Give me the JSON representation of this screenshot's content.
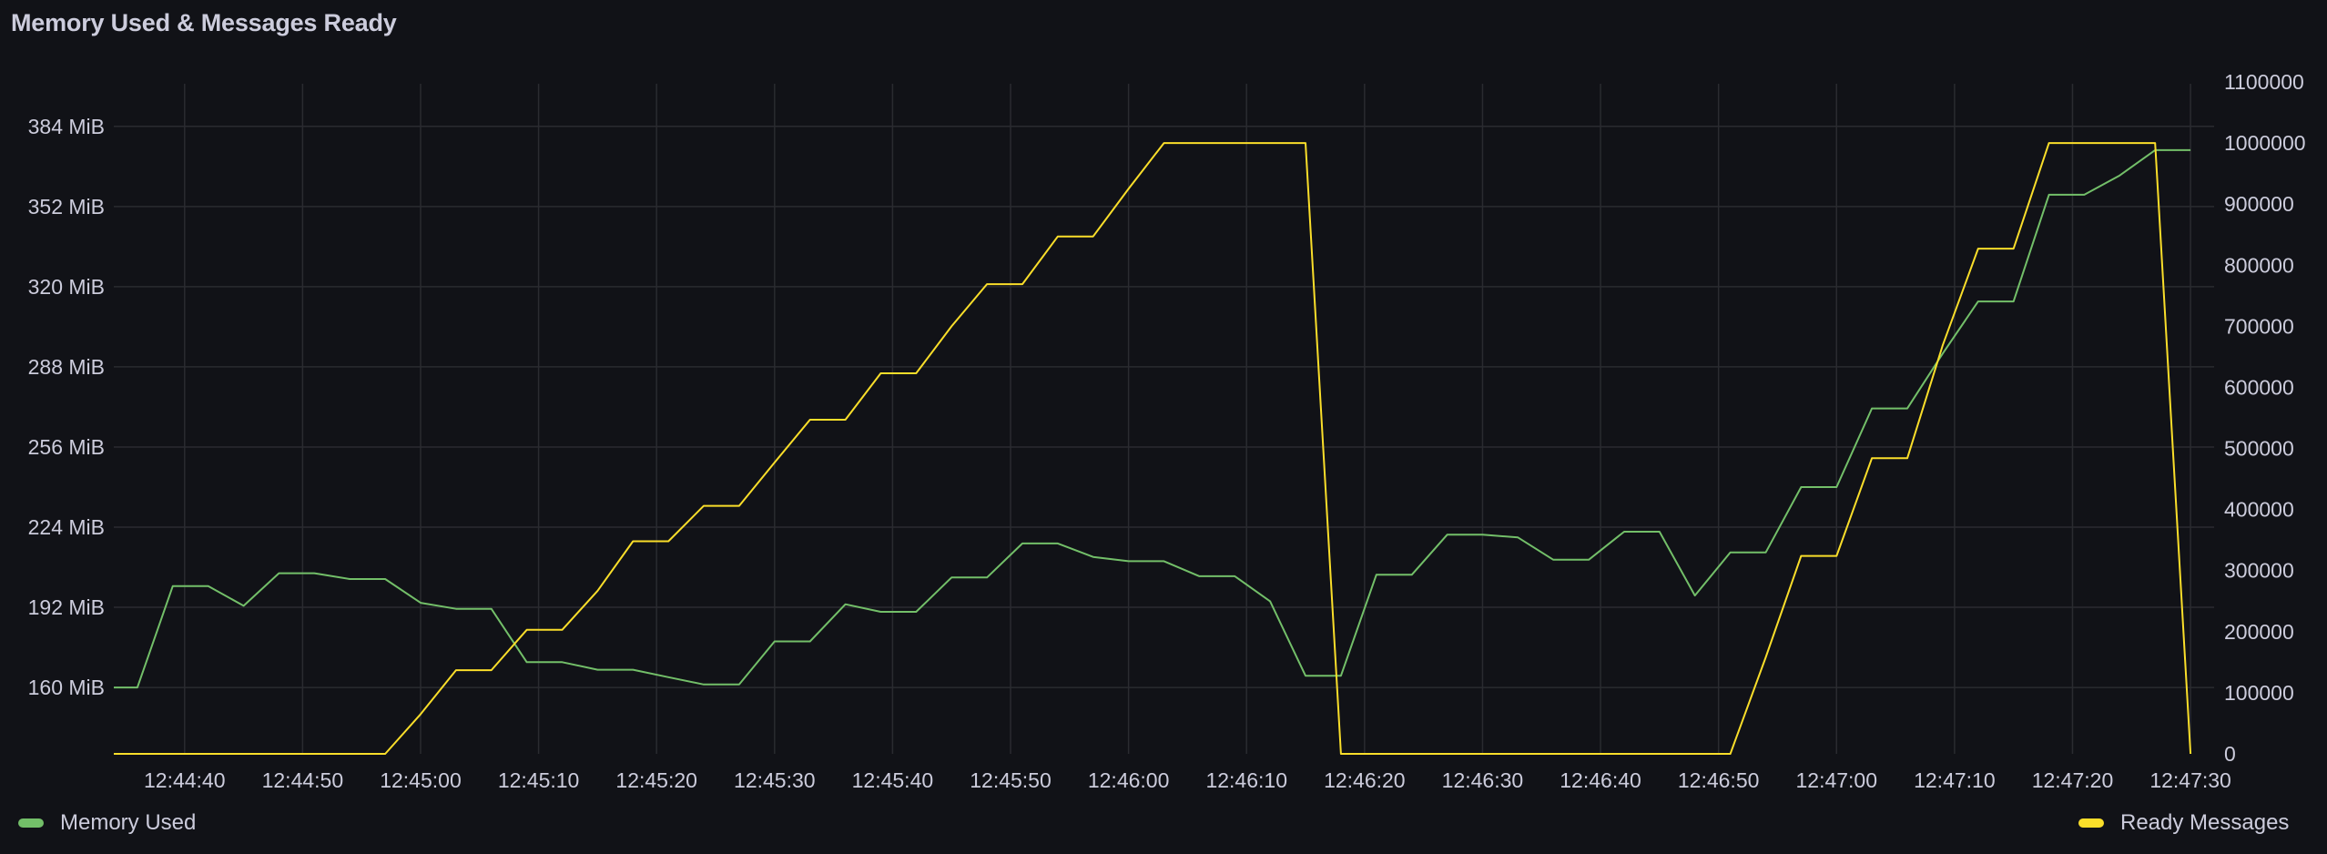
{
  "panel": {
    "title": "Memory Used & Messages Ready"
  },
  "colors": {
    "background": "#111217",
    "grid": "#2a2b30",
    "text": "#ccccdc",
    "memory": "#73BF69",
    "ready": "#FADE2A"
  },
  "legend": {
    "left": {
      "label": "Memory Used",
      "color": "#73BF69"
    },
    "right": {
      "label": "Ready Messages",
      "color": "#FADE2A"
    }
  },
  "chart_data": {
    "type": "line",
    "title": "Memory Used & Messages Ready",
    "grid": true,
    "legend_placement": "bottom",
    "xlim": [
      "12:44:34",
      "12:47:32"
    ],
    "x_ticks": [
      "12:44:40",
      "12:44:50",
      "12:45:00",
      "12:45:10",
      "12:45:20",
      "12:45:30",
      "12:45:40",
      "12:45:50",
      "12:46:00",
      "12:46:10",
      "12:46:20",
      "12:46:30",
      "12:46:40",
      "12:46:50",
      "12:47:00",
      "12:47:10",
      "12:47:20",
      "12:47:30"
    ],
    "y_left": {
      "unit": "MiB",
      "ylim": [
        133.5,
        401
      ],
      "ticks": [
        160,
        192,
        224,
        256,
        288,
        320,
        352,
        384
      ],
      "tick_labels": [
        "160 MiB",
        "192 MiB",
        "224 MiB",
        "256 MiB",
        "288 MiB",
        "320 MiB",
        "352 MiB",
        "384 MiB"
      ]
    },
    "y_right": {
      "ylim": [
        0,
        1097000
      ],
      "ticks": [
        0,
        100000,
        200000,
        300000,
        400000,
        500000,
        600000,
        700000,
        800000,
        900000,
        1000000,
        1100000
      ],
      "tick_labels": [
        "0",
        "100000",
        "200000",
        "300000",
        "400000",
        "500000",
        "600000",
        "700000",
        "800000",
        "900000",
        "1000000",
        "1100000"
      ]
    },
    "x": [
      "12:44:33",
      "12:44:36",
      "12:44:39",
      "12:44:42",
      "12:44:45",
      "12:44:48",
      "12:44:51",
      "12:44:54",
      "12:44:57",
      "12:45:00",
      "12:45:03",
      "12:45:06",
      "12:45:09",
      "12:45:12",
      "12:45:15",
      "12:45:18",
      "12:45:21",
      "12:45:24",
      "12:45:27",
      "12:45:30",
      "12:45:33",
      "12:45:36",
      "12:45:39",
      "12:45:42",
      "12:45:45",
      "12:45:48",
      "12:45:51",
      "12:45:54",
      "12:45:57",
      "12:46:00",
      "12:46:03",
      "12:46:06",
      "12:46:09",
      "12:46:12",
      "12:46:15",
      "12:46:18",
      "12:46:21",
      "12:46:24",
      "12:46:27",
      "12:46:30",
      "12:46:33",
      "12:46:36",
      "12:46:39",
      "12:46:42",
      "12:46:45",
      "12:46:48",
      "12:46:51",
      "12:46:54",
      "12:46:57",
      "12:47:00",
      "12:47:03",
      "12:47:06",
      "12:47:09",
      "12:47:12",
      "12:47:15",
      "12:47:18",
      "12:47:21",
      "12:47:24",
      "12:47:27",
      "12:47:30"
    ],
    "series": [
      {
        "name": "Memory Used",
        "axis": "left",
        "color": "#73BF69",
        "values": [
          160,
          160,
          200.5,
          200.5,
          192.6,
          205.6,
          205.6,
          203.3,
          203.3,
          193.8,
          191.4,
          191.4,
          170.1,
          170.1,
          167.1,
          167.1,
          164.1,
          161.2,
          161.2,
          178.4,
          178.4,
          193.2,
          190.2,
          190.2,
          203.9,
          203.9,
          217.5,
          217.5,
          212.1,
          210.4,
          210.4,
          204.4,
          204.4,
          194.4,
          164.7,
          164.7,
          205,
          205,
          221,
          221,
          219.9,
          211,
          211,
          222.2,
          222.2,
          196.7,
          213.9,
          213.9,
          240,
          240,
          271.4,
          271.4,
          293.3,
          314.1,
          314.1,
          356.7,
          356.7,
          364.4,
          374.5,
          374.5
        ]
      },
      {
        "name": "Ready Messages",
        "axis": "right",
        "color": "#FADE2A",
        "values": [
          0,
          0,
          0,
          0,
          0,
          0,
          0,
          0,
          0,
          65000,
          137000,
          137000,
          203000,
          203000,
          267000,
          348000,
          348000,
          406000,
          406000,
          477000,
          547000,
          547000,
          623000,
          623000,
          700000,
          769000,
          769000,
          847000,
          847000,
          925000,
          1000000,
          1000000,
          1000000,
          1000000,
          1000000,
          0,
          0,
          0,
          0,
          0,
          0,
          0,
          0,
          0,
          0,
          0,
          0,
          158000,
          324000,
          324000,
          484000,
          484000,
          669000,
          827000,
          827000,
          1000000,
          1000000,
          1000000,
          1000000,
          0
        ]
      }
    ]
  }
}
